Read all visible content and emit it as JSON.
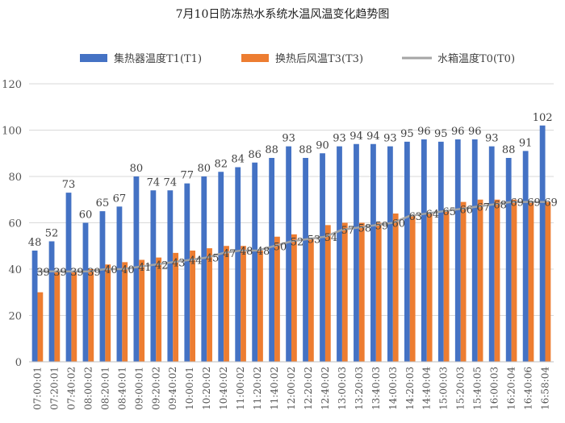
{
  "chart_data": {
    "type": "bar",
    "title": "7月10日防冻热水系统水温风温变化趋势图",
    "xlabel": "",
    "ylabel": "",
    "ylim": [
      0,
      120
    ],
    "yticks": [
      0,
      20,
      40,
      60,
      80,
      100,
      120
    ],
    "grid": true,
    "legend_position": "top",
    "categories": [
      "07:00:01",
      "07:20:01",
      "07:40:02",
      "08:00:02",
      "08:20:01",
      "08:40:01",
      "09:00:01",
      "09:20:02",
      "09:40:02",
      "10:00:01",
      "10:20:02",
      "10:40:02",
      "11:00:02",
      "11:20:02",
      "11:40:02",
      "12:00:02",
      "12:20:02",
      "12:40:02",
      "13:00:03",
      "13:20:03",
      "13:40:03",
      "14:00:03",
      "14:20:03",
      "14:40:04",
      "15:00:03",
      "15:20:03",
      "15:40:05",
      "16:00:03",
      "16:20:04",
      "16:40:06",
      "16:58:04"
    ],
    "series": [
      {
        "name": "集热器温度T1(T1)",
        "kind": "bar",
        "color": "#4472C4",
        "values": [
          48,
          52,
          73,
          60,
          65,
          67,
          80,
          74,
          74,
          77,
          80,
          82,
          84,
          86,
          88,
          93,
          88,
          90,
          93,
          94,
          94,
          93,
          95,
          96,
          95,
          96,
          96,
          93,
          88,
          91,
          102
        ],
        "labels": [
          "48",
          "52",
          "73",
          "60",
          "65",
          "67",
          "80",
          "74",
          "74",
          "77",
          "80",
          "82",
          "84",
          "86",
          "88",
          "93",
          "88",
          "90",
          "93",
          "94",
          "94",
          "93",
          "95",
          "96",
          "95",
          "96",
          "96",
          "93",
          "88",
          "91",
          "102"
        ]
      },
      {
        "name": "换热后风温T3(T3)",
        "kind": "bar",
        "color": "#ED7D31",
        "values": [
          30,
          39,
          39,
          40,
          42,
          43,
          44,
          45,
          47,
          48,
          49,
          50,
          50,
          48,
          54,
          55,
          53,
          59,
          60,
          60,
          60,
          64,
          63,
          64,
          65,
          69,
          70,
          70,
          70,
          69,
          69
        ],
        "labels": []
      },
      {
        "name": "水箱温度T0(T0)",
        "kind": "line",
        "color": "#A5A5A5",
        "values": [
          39,
          39,
          39,
          39,
          40,
          40,
          41,
          42,
          43,
          44,
          45,
          47,
          48,
          48,
          50,
          52,
          53,
          54,
          57,
          58,
          59,
          60,
          63,
          64,
          65,
          66,
          67,
          68,
          69,
          69,
          69
        ],
        "labels": [
          "39",
          "39",
          "39",
          "39",
          "40",
          "40",
          "41",
          "42",
          "43",
          "44",
          "45",
          "47",
          "48",
          "48",
          "50",
          "52",
          "53",
          "54",
          "57",
          "58",
          "59",
          "60",
          "63",
          "64",
          "65",
          "66",
          "67",
          "68",
          "69",
          "69",
          "69"
        ]
      }
    ]
  }
}
